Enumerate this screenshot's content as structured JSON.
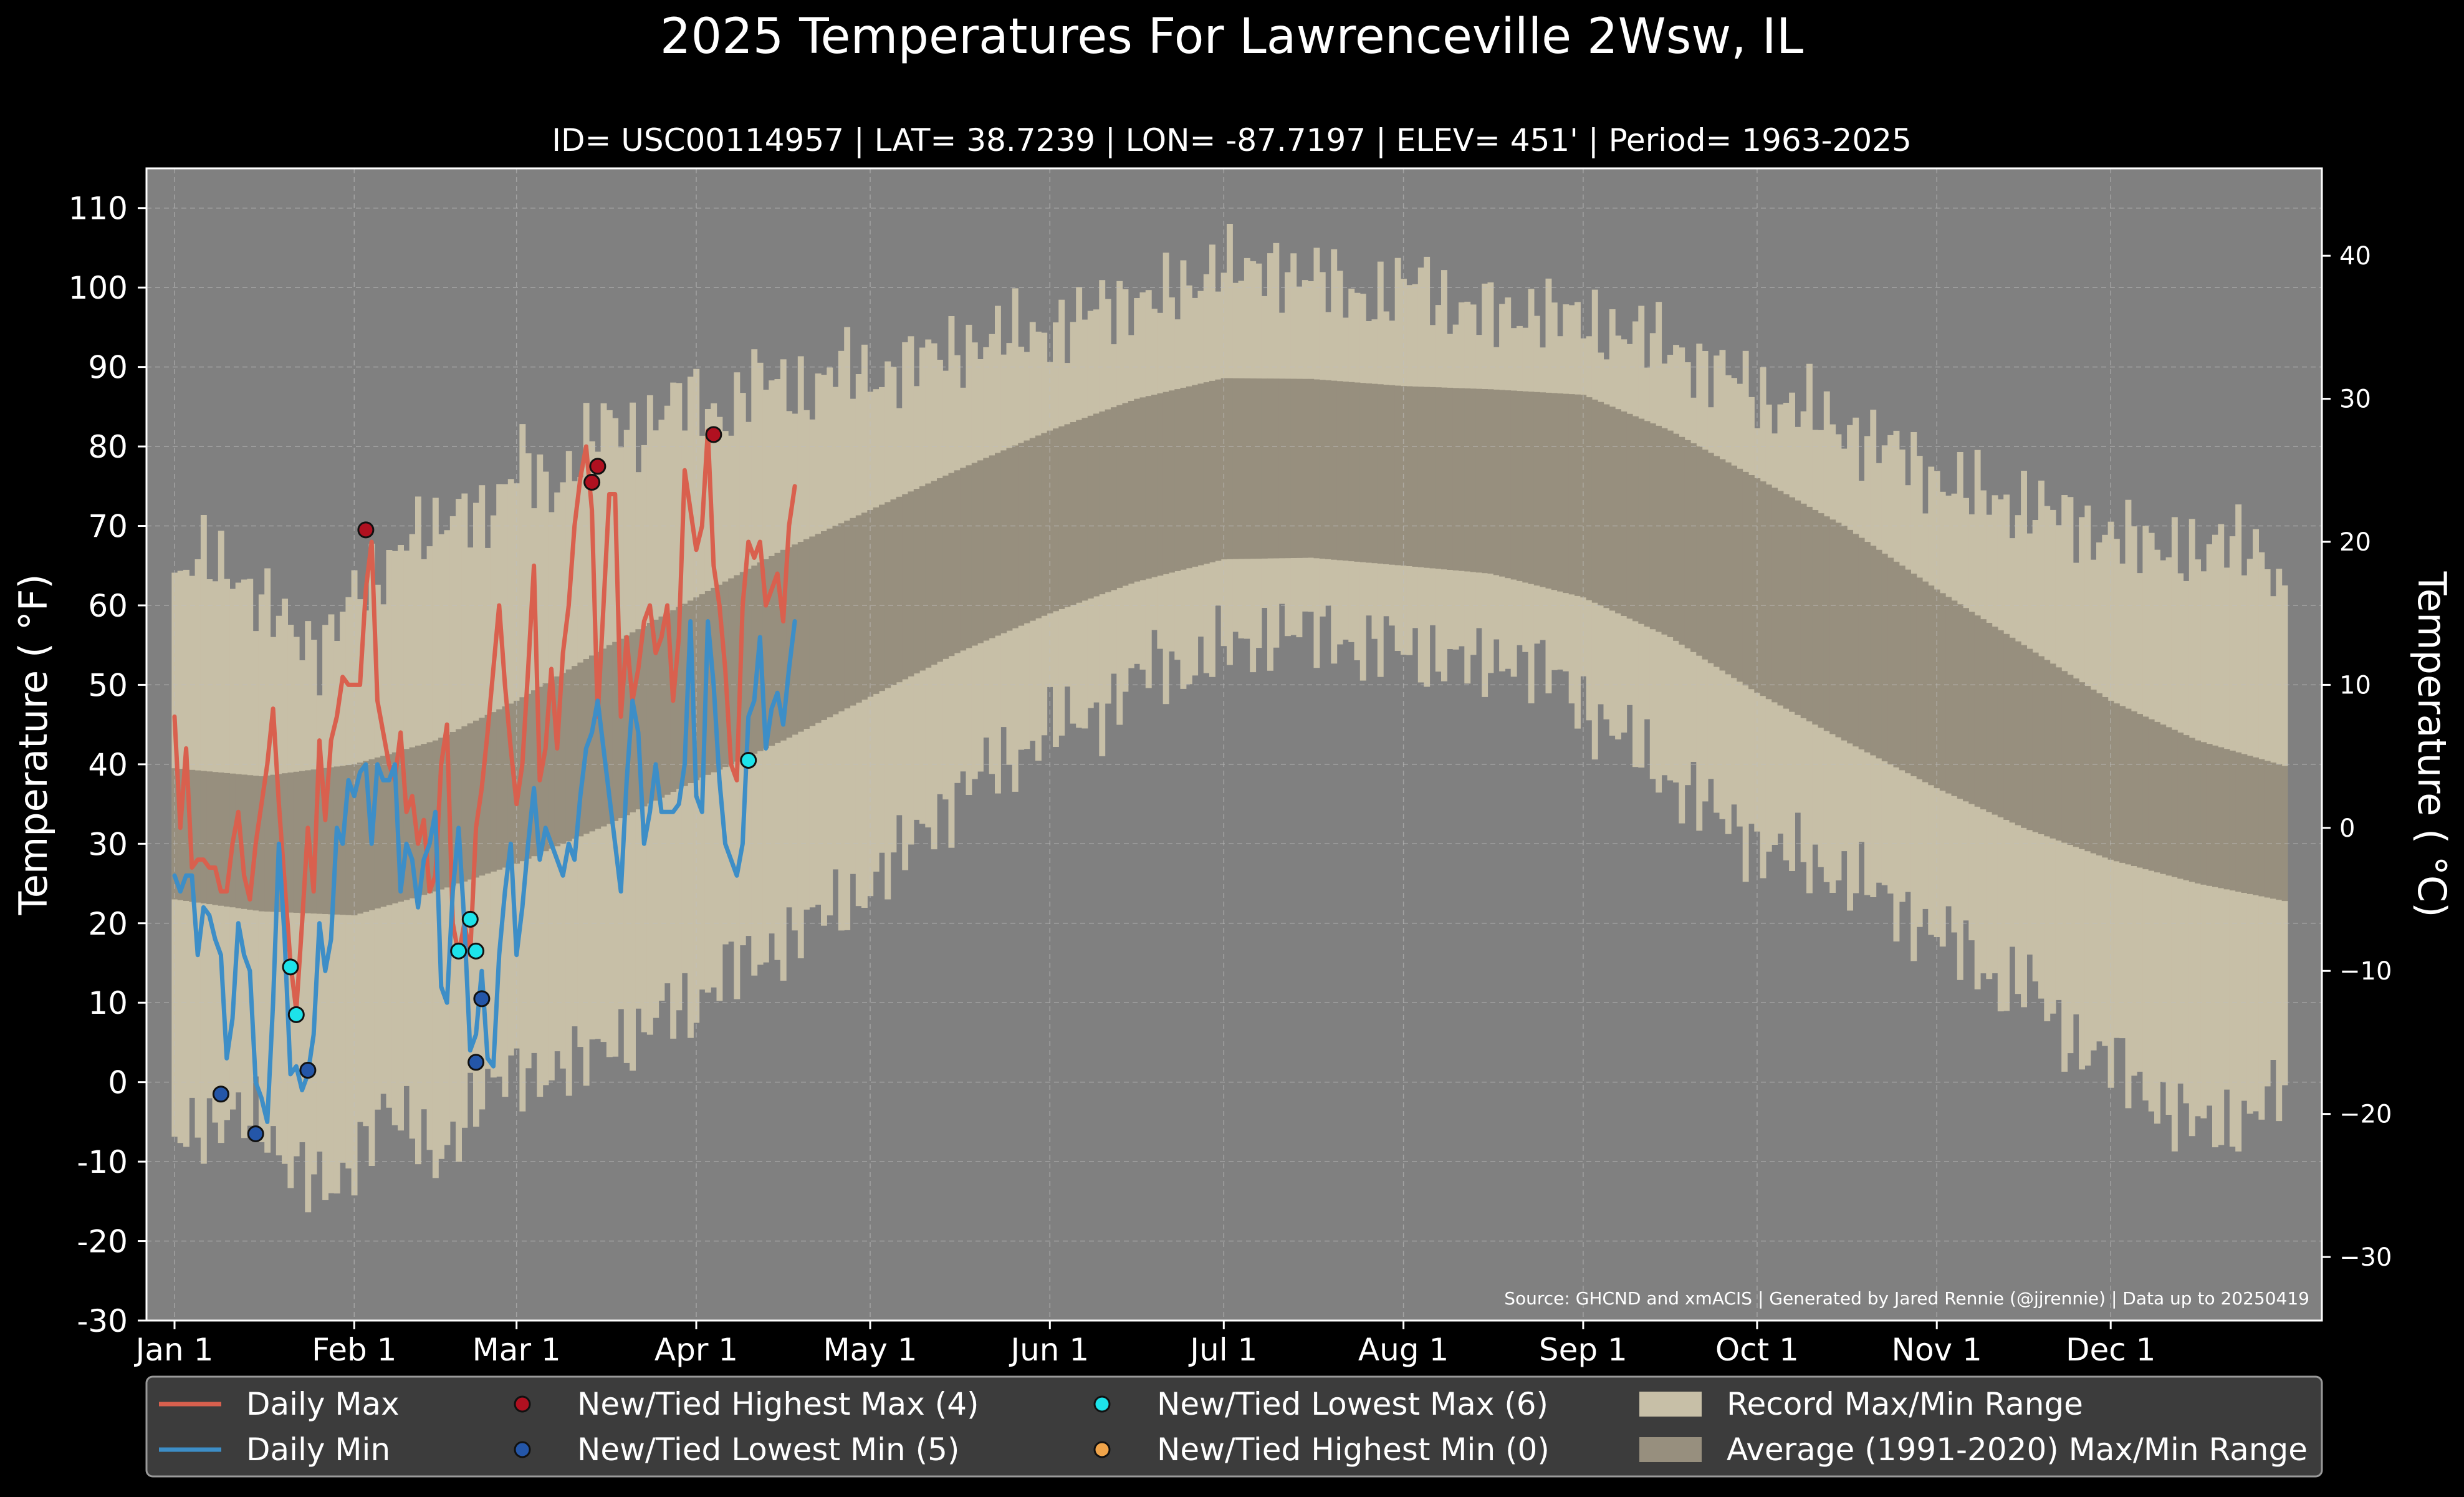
{
  "chart_data": {
    "type": "line",
    "title": "2025 Temperatures For Lawrenceville 2Wsw, IL",
    "subtitle": "ID= USC00114957 | LAT= 38.7239 | LON= -87.7197 | ELEV= 451' | Period= 1963-2025",
    "ylabel": "Temperature ($^\\circ$F)",
    "ylabel_display": "Temperature ( °F)",
    "y2label_display": "Temperature ( °C)",
    "ylim": [
      -30,
      115
    ],
    "y_ticks": [
      "110",
      "100",
      "90",
      "80",
      "70",
      "60",
      "50",
      "40",
      "30",
      "20",
      "10",
      "0",
      "-10",
      "-20",
      "-30"
    ],
    "y2_ticks": [
      "40",
      "30",
      "20",
      "10",
      "0",
      "−10",
      "−20",
      "−30"
    ],
    "x_ticks": [
      "Jan 1",
      "Feb 1",
      "Mar 1",
      "Apr 1",
      "May 1",
      "Jun 1",
      "Jul 1",
      "Aug 1",
      "Sep 1",
      "Oct 1",
      "Nov 1",
      "Dec 1"
    ],
    "grid": true,
    "legend_position": "bottom",
    "source_note": "Source: GHCND and xmACIS | Generated by Jared Rennie (@jjrennie) | Data up to 20250419",
    "colors": {
      "background": "#808080",
      "record_range": "#c7bfa7",
      "average_range": "#978f7e",
      "daily_max": "#d9604e",
      "daily_min": "#3d8ec7",
      "highest_max": "#b01020",
      "lowest_min": "#2456a8",
      "lowest_max": "#1de3ea",
      "highest_min": "#f0a44a"
    },
    "legend": [
      {
        "label": "Daily Max",
        "kind": "line",
        "color": "#d9604e"
      },
      {
        "label": "Daily Min",
        "kind": "line",
        "color": "#3d8ec7"
      },
      {
        "label": "New/Tied Highest Max (4)",
        "kind": "dot",
        "color": "#b01020"
      },
      {
        "label": "New/Tied Lowest Min (5)",
        "kind": "dot",
        "color": "#2456a8"
      },
      {
        "label": "New/Tied Lowest Max (6)",
        "kind": "dot",
        "color": "#1de3ea"
      },
      {
        "label": "New/Tied Highest Min (0)",
        "kind": "dot",
        "color": "#f0a44a"
      },
      {
        "label": "Record Max/Min Range",
        "kind": "patch",
        "color": "#c7bfa7"
      },
      {
        "label": "Average (1991-2020) Max/Min Range",
        "kind": "patch",
        "color": "#978f7e"
      }
    ],
    "record_max_points": [
      [
        0,
        62
      ],
      [
        5,
        66
      ],
      [
        10,
        65
      ],
      [
        15,
        60
      ],
      [
        20,
        57
      ],
      [
        25,
        55
      ],
      [
        30,
        60
      ],
      [
        35,
        63
      ],
      [
        40,
        70
      ],
      [
        45,
        68
      ],
      [
        50,
        73
      ],
      [
        55,
        72
      ],
      [
        60,
        78
      ],
      [
        65,
        75
      ],
      [
        70,
        79
      ],
      [
        75,
        83
      ],
      [
        80,
        82
      ],
      [
        85,
        85
      ],
      [
        90,
        86
      ],
      [
        95,
        84
      ],
      [
        100,
        88
      ],
      [
        105,
        88
      ],
      [
        110,
        87
      ],
      [
        115,
        90
      ],
      [
        120,
        89
      ],
      [
        125,
        90
      ],
      [
        130,
        91
      ],
      [
        135,
        93
      ],
      [
        140,
        93
      ],
      [
        145,
        94
      ],
      [
        150,
        95
      ],
      [
        155,
        95
      ],
      [
        160,
        98
      ],
      [
        165,
        99
      ],
      [
        170,
        98
      ],
      [
        175,
        100
      ],
      [
        180,
        104
      ],
      [
        185,
        101
      ],
      [
        190,
        103
      ],
      [
        195,
        102
      ],
      [
        200,
        100
      ],
      [
        205,
        99
      ],
      [
        210,
        99
      ],
      [
        215,
        101
      ],
      [
        220,
        98
      ],
      [
        225,
        97
      ],
      [
        230,
        96
      ],
      [
        235,
        98
      ],
      [
        240,
        96
      ],
      [
        245,
        95
      ],
      [
        250,
        95
      ],
      [
        255,
        93
      ],
      [
        260,
        92
      ],
      [
        265,
        90
      ],
      [
        270,
        88
      ],
      [
        275,
        86
      ],
      [
        280,
        85
      ],
      [
        285,
        83
      ],
      [
        290,
        82
      ],
      [
        295,
        80
      ],
      [
        300,
        78
      ],
      [
        305,
        76
      ],
      [
        310,
        74
      ],
      [
        315,
        73
      ],
      [
        320,
        73
      ],
      [
        325,
        71
      ],
      [
        330,
        70
      ],
      [
        335,
        69
      ],
      [
        340,
        67
      ],
      [
        345,
        68
      ],
      [
        350,
        66
      ],
      [
        355,
        68
      ],
      [
        360,
        68
      ],
      [
        364,
        60
      ]
    ],
    "record_min_points": [
      [
        0,
        -8
      ],
      [
        5,
        -5
      ],
      [
        10,
        -4
      ],
      [
        15,
        -6
      ],
      [
        18,
        -9
      ],
      [
        22,
        -10
      ],
      [
        25,
        -13
      ],
      [
        28,
        -15
      ],
      [
        32,
        -8
      ],
      [
        36,
        -2
      ],
      [
        40,
        -6
      ],
      [
        45,
        -10
      ],
      [
        50,
        -4
      ],
      [
        55,
        -1
      ],
      [
        60,
        2
      ],
      [
        65,
        1
      ],
      [
        70,
        2
      ],
      [
        75,
        6
      ],
      [
        80,
        5
      ],
      [
        85,
        9
      ],
      [
        90,
        10
      ],
      [
        95,
        14
      ],
      [
        100,
        15
      ],
      [
        105,
        18
      ],
      [
        110,
        20
      ],
      [
        115,
        22
      ],
      [
        120,
        25
      ],
      [
        125,
        28
      ],
      [
        130,
        33
      ],
      [
        135,
        36
      ],
      [
        140,
        39
      ],
      [
        145,
        41
      ],
      [
        150,
        44
      ],
      [
        155,
        45
      ],
      [
        160,
        47
      ],
      [
        165,
        50
      ],
      [
        170,
        53
      ],
      [
        175,
        52
      ],
      [
        180,
        54
      ],
      [
        185,
        55
      ],
      [
        190,
        57
      ],
      [
        195,
        56
      ],
      [
        200,
        57
      ],
      [
        205,
        54
      ],
      [
        210,
        55
      ],
      [
        215,
        54
      ],
      [
        220,
        53
      ],
      [
        225,
        52
      ],
      [
        230,
        54
      ],
      [
        235,
        52
      ],
      [
        240,
        50
      ],
      [
        245,
        46
      ],
      [
        250,
        43
      ],
      [
        255,
        40
      ],
      [
        260,
        37
      ],
      [
        265,
        34
      ],
      [
        270,
        32
      ],
      [
        275,
        29
      ],
      [
        280,
        28
      ],
      [
        285,
        27
      ],
      [
        290,
        25
      ],
      [
        295,
        23
      ],
      [
        300,
        21
      ],
      [
        305,
        18
      ],
      [
        310,
        16
      ],
      [
        315,
        12
      ],
      [
        320,
        12
      ],
      [
        325,
        7
      ],
      [
        330,
        4
      ],
      [
        335,
        2
      ],
      [
        340,
        -1
      ],
      [
        345,
        -4
      ],
      [
        350,
        -6
      ],
      [
        355,
        -5
      ],
      [
        360,
        -3
      ],
      [
        364,
        -1
      ]
    ],
    "average_max_points": [
      [
        0,
        39.5
      ],
      [
        15,
        38.5
      ],
      [
        31,
        40
      ],
      [
        45,
        43
      ],
      [
        59,
        48
      ],
      [
        75,
        55
      ],
      [
        90,
        61
      ],
      [
        105,
        67
      ],
      [
        120,
        72
      ],
      [
        135,
        77
      ],
      [
        151,
        82
      ],
      [
        166,
        86
      ],
      [
        181,
        88.6
      ],
      [
        196,
        88.5
      ],
      [
        212,
        87.6
      ],
      [
        227,
        87.2
      ],
      [
        243,
        86.5
      ],
      [
        258,
        82
      ],
      [
        273,
        76
      ],
      [
        288,
        70
      ],
      [
        304,
        62
      ],
      [
        319,
        55
      ],
      [
        334,
        48
      ],
      [
        349,
        43
      ],
      [
        364,
        39.8
      ]
    ],
    "average_min_points": [
      [
        0,
        23
      ],
      [
        15,
        21.5
      ],
      [
        31,
        21
      ],
      [
        45,
        24
      ],
      [
        59,
        27.5
      ],
      [
        75,
        32.5
      ],
      [
        90,
        38
      ],
      [
        105,
        43
      ],
      [
        120,
        48.5
      ],
      [
        135,
        54
      ],
      [
        151,
        59
      ],
      [
        166,
        63
      ],
      [
        181,
        65.8
      ],
      [
        196,
        66
      ],
      [
        212,
        65
      ],
      [
        227,
        64
      ],
      [
        243,
        61
      ],
      [
        258,
        56
      ],
      [
        273,
        49
      ],
      [
        288,
        43
      ],
      [
        304,
        37
      ],
      [
        319,
        32
      ],
      [
        334,
        28
      ],
      [
        349,
        25
      ],
      [
        364,
        22.8
      ]
    ],
    "series": [
      {
        "name": "Daily Max",
        "values": [
          46,
          32,
          42,
          27,
          28,
          28,
          27,
          27,
          24,
          24,
          30,
          34,
          26,
          23,
          30,
          35,
          40,
          47,
          35,
          25,
          15,
          9,
          20,
          32,
          24,
          43,
          33,
          43,
          46,
          51,
          50,
          50,
          50,
          62,
          68,
          48,
          44,
          40,
          38,
          44,
          34,
          36,
          30,
          33,
          24,
          26,
          40,
          45,
          20,
          16,
          20,
          16,
          32,
          37,
          44,
          52,
          60,
          50,
          42,
          35,
          40,
          52,
          65,
          38,
          42,
          52,
          42,
          54,
          60,
          70,
          76,
          80,
          72,
          46,
          60,
          74,
          74,
          46,
          56,
          48,
          52,
          58,
          60,
          54,
          56,
          60,
          48,
          56,
          77,
          72,
          67,
          70,
          82,
          65,
          60,
          52,
          40,
          38,
          60,
          68,
          66,
          68,
          60,
          62,
          64,
          58,
          70,
          75
        ]
      },
      {
        "name": "Daily Min",
        "values": [
          26,
          24,
          26,
          26,
          16,
          22,
          21,
          18,
          16,
          3,
          8,
          20,
          16,
          14,
          0,
          -2,
          -5,
          10,
          30,
          18,
          1,
          2,
          -1,
          1,
          6,
          20,
          14,
          18,
          32,
          30,
          38,
          36,
          39,
          40,
          30,
          40,
          38,
          38,
          40,
          24,
          30,
          28,
          22,
          28,
          30,
          34,
          12,
          10,
          24,
          32,
          20,
          4,
          6,
          14,
          3,
          2,
          16,
          24,
          30,
          16,
          22,
          30,
          37,
          28,
          32,
          30,
          28,
          26,
          30,
          28,
          36,
          42,
          44,
          48,
          42,
          36,
          30,
          24,
          38,
          48,
          44,
          30,
          34,
          40,
          34,
          34,
          34,
          35,
          40,
          58,
          36,
          34,
          58,
          50,
          38,
          30,
          28,
          26,
          30,
          46,
          48,
          56,
          42,
          47,
          49,
          45,
          52,
          58
        ]
      }
    ],
    "markers": {
      "highest_max": [
        [
          33,
          69.5
        ],
        [
          72,
          75.5
        ],
        [
          73,
          77.5
        ],
        [
          93,
          81.5
        ]
      ],
      "lowest_min": [
        [
          8,
          -1.5
        ],
        [
          14,
          -6.5
        ],
        [
          23,
          1.5
        ],
        [
          52,
          2.5
        ],
        [
          53,
          10.5
        ]
      ],
      "lowest_max": [
        [
          20,
          14.5
        ],
        [
          21,
          8.5
        ],
        [
          49,
          16.5
        ],
        [
          51,
          20.5
        ],
        [
          52,
          16.5
        ],
        [
          99,
          40.5
        ]
      ],
      "highest_min": []
    }
  }
}
